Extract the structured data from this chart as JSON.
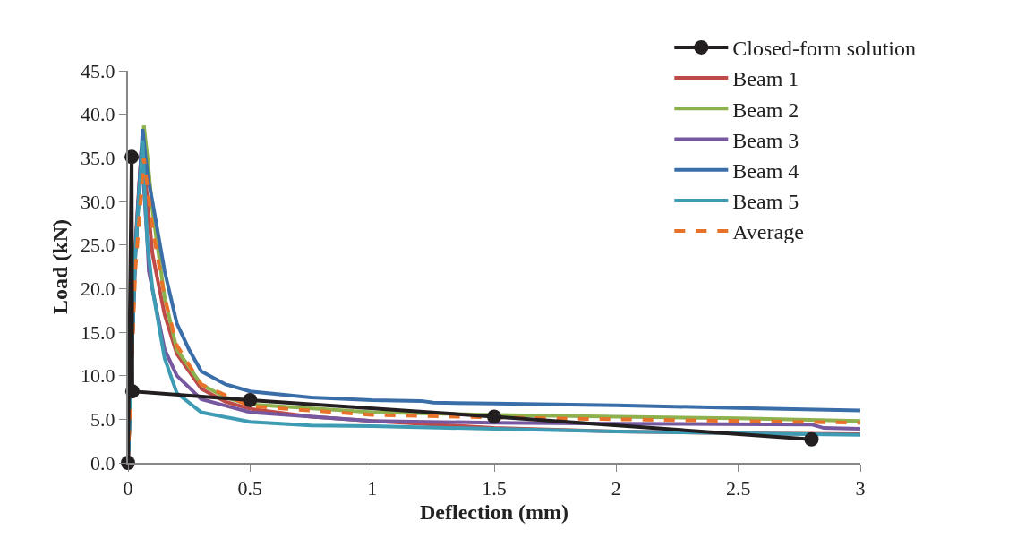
{
  "chart_data": {
    "type": "line",
    "xlabel": "Deflection (mm)",
    "ylabel": "Load (kN)",
    "xlim": [
      0,
      3
    ],
    "xticks": [
      0,
      0.5,
      1,
      1.5,
      2,
      2.5,
      3
    ],
    "ylim": [
      0,
      45
    ],
    "yticks": [
      {
        "value": 0,
        "label": "0.0"
      },
      {
        "value": 5,
        "label": "5.0"
      },
      {
        "value": 10,
        "label": "10.0"
      },
      {
        "value": 15,
        "label": "15.0"
      },
      {
        "value": 20,
        "label": "20.0"
      },
      {
        "value": 25,
        "label": "25.0"
      },
      {
        "value": 30,
        "label": "30.0"
      },
      {
        "value": 35,
        "label": "35.0"
      },
      {
        "value": 40,
        "label": "40.0"
      },
      {
        "value": 45,
        "label": "45.0"
      }
    ],
    "legend": "top right",
    "series": [
      {
        "name": "Closed-form solution",
        "color": "#231f20",
        "marker": "circle",
        "x": [
          0,
          0.015,
          0.018,
          0.5,
          1.5,
          2.8
        ],
        "values": [
          0,
          35.1,
          8.2,
          7.2,
          5.3,
          2.7
        ]
      },
      {
        "name": "Beam 1",
        "color": "#be4b48",
        "x": [
          0,
          0.03,
          0.055,
          0.07,
          0.1,
          0.15,
          0.2,
          0.3,
          0.4,
          0.5,
          0.75,
          1,
          1.5,
          2,
          2.5,
          3
        ],
        "values": [
          0,
          25,
          36,
          33,
          24,
          17,
          12.5,
          8.5,
          7,
          6.2,
          5.3,
          4.8,
          4,
          3.6,
          3.4,
          3.3
        ]
      },
      {
        "name": "Beam 2",
        "color": "#8db14c",
        "x": [
          0,
          0.03,
          0.065,
          0.08,
          0.1,
          0.15,
          0.2,
          0.3,
          0.4,
          0.5,
          1,
          1.5,
          2,
          2.5,
          3
        ],
        "values": [
          0,
          24,
          38.7,
          35,
          29,
          19,
          13,
          9,
          7.5,
          6.7,
          5.8,
          5.5,
          5.3,
          5.1,
          4.8
        ]
      },
      {
        "name": "Beam 3",
        "color": "#7658a0",
        "x": [
          0,
          0.03,
          0.055,
          0.08,
          0.085,
          0.15,
          0.2,
          0.3,
          0.5,
          1,
          1.5,
          2,
          2.8,
          2.85,
          3
        ],
        "values": [
          0,
          24,
          36,
          25,
          22,
          13,
          10,
          7.3,
          5.8,
          4.8,
          4.6,
          4.5,
          4.4,
          4.0,
          3.9
        ]
      },
      {
        "name": "Beam 4",
        "color": "#3a6ea8",
        "x": [
          0,
          0.03,
          0.06,
          0.08,
          0.1,
          0.15,
          0.2,
          0.25,
          0.3,
          0.4,
          0.5,
          0.75,
          1,
          1.2,
          1.25,
          1.5,
          2,
          2.5,
          3
        ],
        "values": [
          0,
          24,
          38.3,
          33,
          30,
          22,
          16,
          13,
          10.5,
          9,
          8.2,
          7.5,
          7.2,
          7.1,
          6.9,
          6.8,
          6.6,
          6.3,
          6.0
        ]
      },
      {
        "name": "Beam 5",
        "color": "#3d9bb3",
        "x": [
          0,
          0.03,
          0.06,
          0.07,
          0.08,
          0.1,
          0.15,
          0.2,
          0.3,
          0.5,
          0.75,
          1,
          1.5,
          2,
          2.5,
          3
        ],
        "values": [
          0,
          24,
          37,
          30,
          25,
          20,
          12,
          8,
          5.8,
          4.7,
          4.3,
          4.2,
          3.9,
          3.6,
          3.4,
          3.2
        ]
      },
      {
        "name": "Average",
        "color": "#e8722a",
        "line_style": "dashed",
        "x": [
          0,
          0.03,
          0.065,
          0.1,
          0.15,
          0.2,
          0.3,
          0.5,
          1,
          1.5,
          2,
          2.5,
          3
        ],
        "values": [
          0,
          22,
          35,
          27,
          19,
          13.5,
          9,
          6.5,
          5.5,
          5.2,
          5,
          4.8,
          4.6
        ]
      }
    ]
  }
}
